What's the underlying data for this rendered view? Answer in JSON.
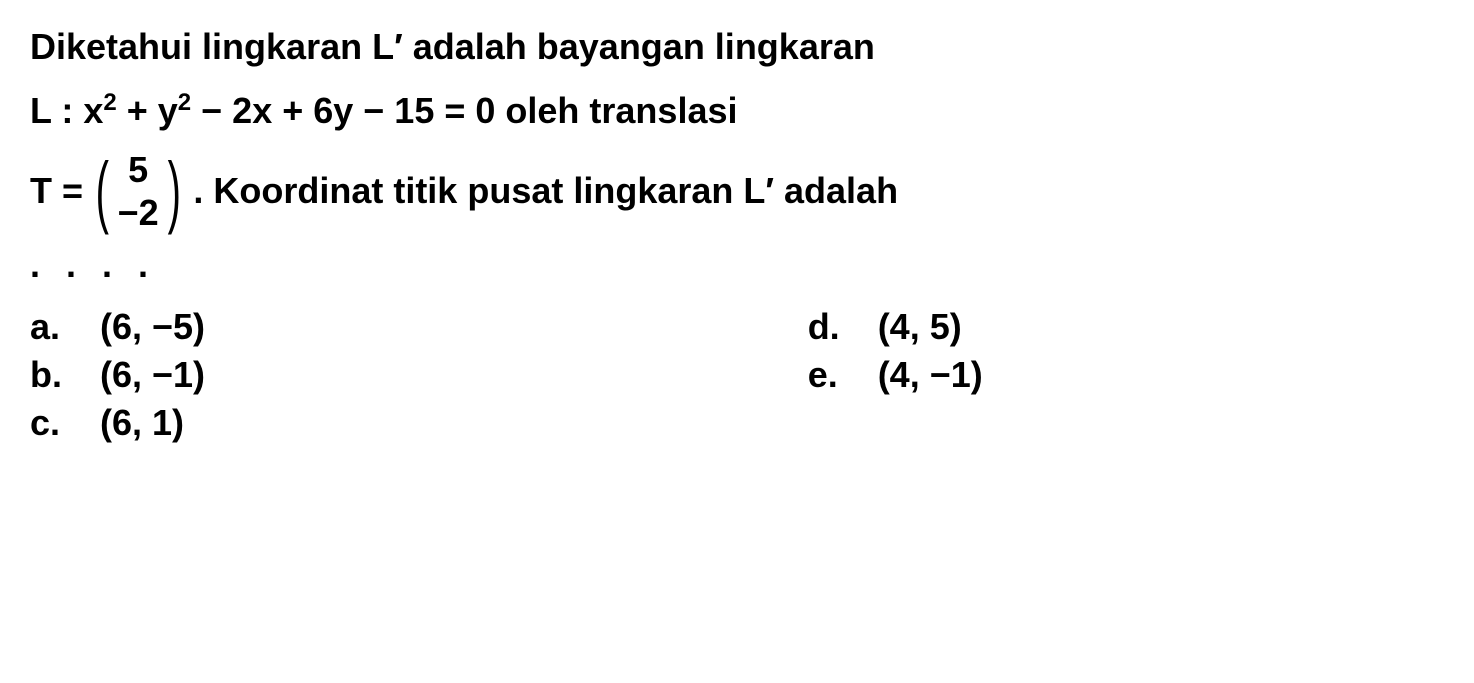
{
  "question": {
    "line1": "Diketahui lingkaran L′ adalah bayangan lingkaran",
    "line2_prefix": "L : x",
    "line2_sup1": "2",
    "line2_mid1": " + y",
    "line2_sup2": "2",
    "line2_rest": " − 2x + 6y − 15 = 0 oleh translasi",
    "line3_prefix": "T = ",
    "matrix_top": "5",
    "matrix_bottom": "−2",
    "line3_suffix": ". Koordinat titik pusat lingkaran L′ adalah",
    "dots": ". . . ."
  },
  "options": {
    "a": {
      "letter": "a.",
      "value": "(6, −5)"
    },
    "b": {
      "letter": "b.",
      "value": "(6, −1)"
    },
    "c": {
      "letter": "c.",
      "value": "(6, 1)"
    },
    "d": {
      "letter": "d.",
      "value": "(4, 5)"
    },
    "e": {
      "letter": "e.",
      "value": "(4, −1)"
    }
  },
  "style": {
    "font_size_pt": 36,
    "font_weight": "bold",
    "text_color": "#000000",
    "background_color": "#ffffff",
    "matrix_paren_size": 80,
    "sup_size": 24
  }
}
